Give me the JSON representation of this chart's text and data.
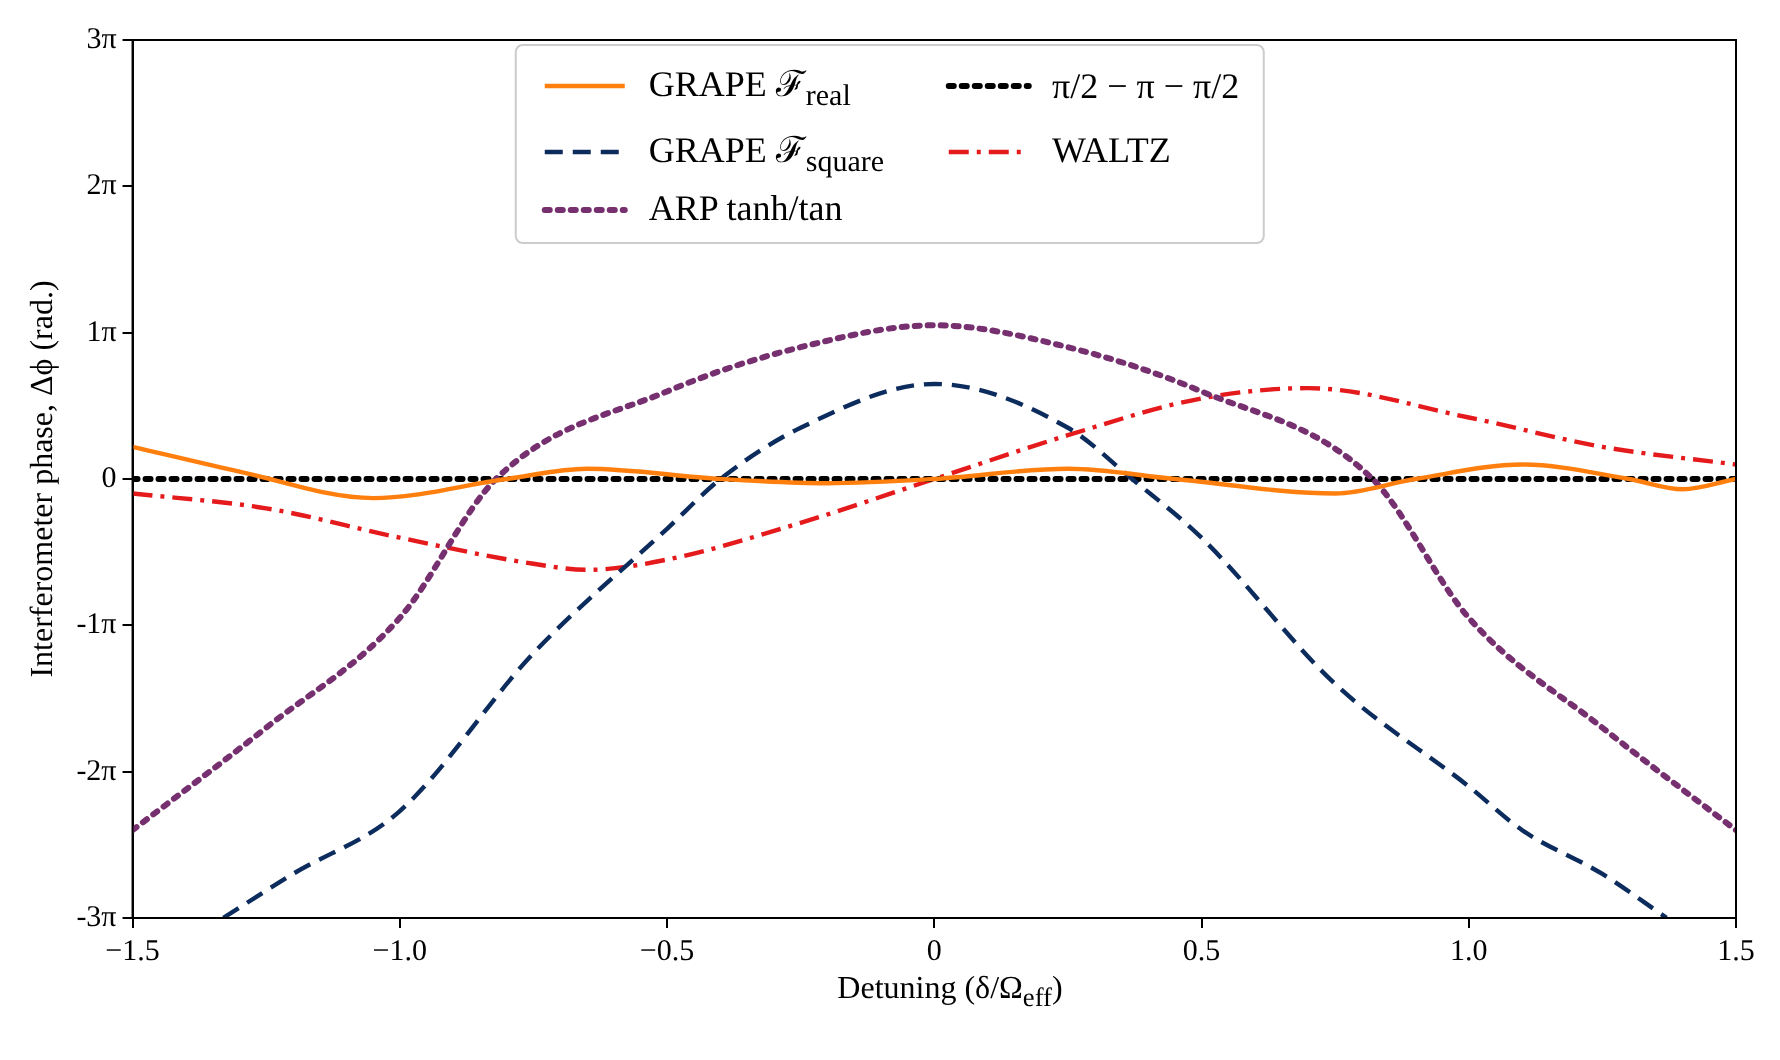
{
  "chart_data": {
    "type": "line",
    "xlabel": "Detuning (δ/Ω$_{eff}$)",
    "ylabel": "Interferometer phase, Δϕ (rad.)",
    "xlim": [
      -1.5,
      1.5
    ],
    "xticks": [
      {
        "value": -1.5,
        "label": "−1.5"
      },
      {
        "value": -1,
        "label": "−1.0"
      },
      {
        "value": -0.5,
        "label": "−0.5"
      },
      0,
      {
        "value": 0.5,
        "label": "0.5"
      },
      {
        "value": 1,
        "label": "1.0"
      },
      {
        "value": 1.5,
        "label": "1.5"
      }
    ],
    "ylim": [
      -9.4248,
      9.4248
    ],
    "yticks": [
      {
        "value": -9.4248,
        "label": "-3π"
      },
      {
        "value": -6.2832,
        "label": "-2π"
      },
      {
        "value": -3.1416,
        "label": "-1π"
      },
      0,
      {
        "value": 3.1416,
        "label": "1π"
      },
      {
        "value": 6.2832,
        "label": "2π"
      },
      {
        "value": 9.4248,
        "label": "3π"
      }
    ],
    "grid": false,
    "legend": "top",
    "marker": "none",
    "series": [
      {
        "name": "GRAPE ℱ$_{real}$",
        "color": "#ff7f0e",
        "line_style": "solid",
        "x": [
          -1.5,
          -1.3,
          -1.05,
          -0.8,
          -0.65,
          -0.4,
          -0.2,
          0,
          0.25,
          0.45,
          0.75,
          0.9,
          1.1,
          1.3,
          1.4,
          1.5
        ],
        "values": [
          0.69,
          0.16,
          -0.41,
          0,
          0.22,
          0,
          -0.09,
          0,
          0.22,
          0,
          -0.31,
          0,
          0.31,
          0,
          -0.22,
          0
        ]
      },
      {
        "name": "GRAPE ℱ$_{square}$",
        "color": "#0d2c5e",
        "line_style": "dashed",
        "x": [
          -1.33,
          -1.2,
          -1.0,
          -0.75,
          -0.5,
          -0.4,
          -0.25,
          0,
          0.25,
          0.37,
          0.5,
          0.75,
          1.0,
          1.1,
          1.25,
          1.37
        ],
        "values": [
          -9.42,
          -8.48,
          -7.13,
          -3.74,
          -1.07,
          0,
          1.1,
          2.04,
          1.1,
          0,
          -1.26,
          -4.4,
          -6.6,
          -7.54,
          -8.48,
          -9.42
        ]
      },
      {
        "name": "ARP tanh/tan",
        "color": "#76306f",
        "line_style": "dotted",
        "x": [
          -1.5,
          -1.25,
          -1.0,
          -0.82,
          -0.5,
          -0.25,
          0,
          0.25,
          0.5,
          0.82,
          1.0,
          1.25,
          1.5
        ],
        "values": [
          -7.54,
          -5.34,
          -2.98,
          0,
          1.88,
          2.83,
          3.3,
          2.83,
          1.88,
          0,
          -2.98,
          -5.34,
          -7.54
        ]
      },
      {
        "name": "π/2 − π − π/2",
        "color": "#000000",
        "line_style": "dotted",
        "x": [
          -1.5,
          1.5
        ],
        "values": [
          0,
          0
        ]
      },
      {
        "name": "WALTZ",
        "color": "#e41a1c",
        "line_style": "dashdot",
        "x": [
          -1.5,
          -1.25,
          -1.0,
          -0.75,
          -0.65,
          -0.5,
          -0.25,
          0,
          0.25,
          0.5,
          0.7,
          1.0,
          1.25,
          1.5
        ],
        "values": [
          -0.31,
          -0.63,
          -1.26,
          -1.82,
          -1.95,
          -1.73,
          -0.94,
          0,
          0.94,
          1.73,
          1.95,
          1.32,
          0.69,
          0.31
        ]
      }
    ]
  }
}
